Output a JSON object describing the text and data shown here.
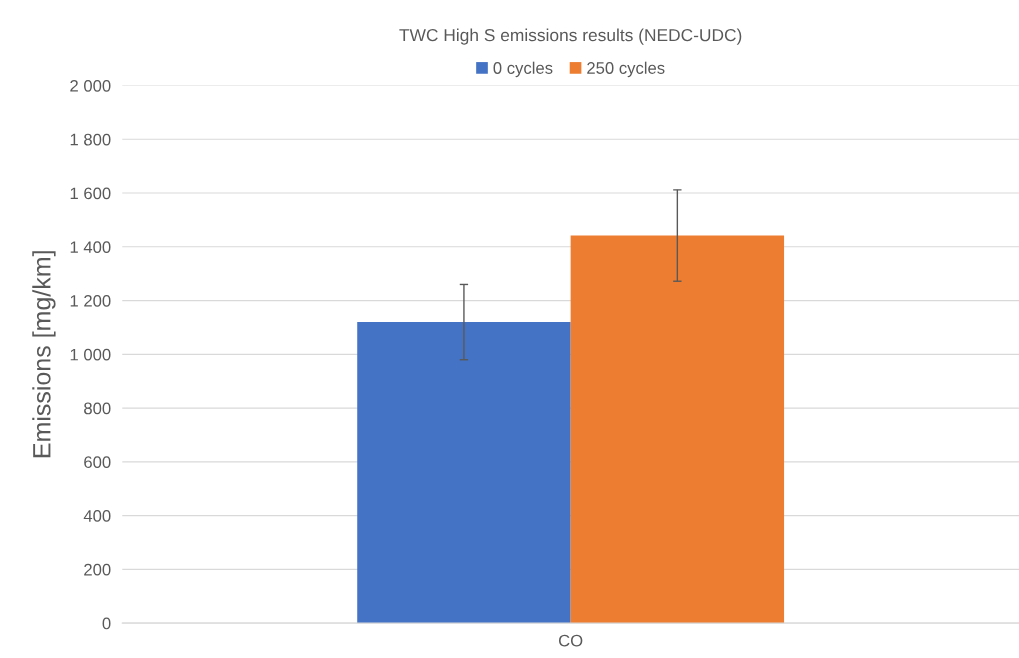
{
  "chart_data": {
    "type": "bar",
    "title": "TWC High S emissions results (NEDC-UDC)",
    "ylabel": "Emissions [mg/km]",
    "categories": [
      "CO"
    ],
    "series": [
      {
        "name": "0 cycles",
        "color": "#4472c4",
        "values": [
          1120
        ],
        "errors": [
          140
        ]
      },
      {
        "name": "250 cycles",
        "color": "#ed7d31",
        "values": [
          1442
        ],
        "errors": [
          170
        ]
      }
    ],
    "ylim": [
      0,
      2000
    ],
    "yticks": [
      0,
      200,
      400,
      600,
      800,
      {
        "value": 1000,
        "label": "1 000"
      },
      {
        "value": 1200,
        "label": "1 200"
      },
      {
        "value": 1400,
        "label": "1 400"
      },
      {
        "value": 1600,
        "label": "1 600"
      },
      {
        "value": 1800,
        "label": "1 800"
      },
      {
        "value": 2000,
        "label": "2 000"
      }
    ],
    "grid": "y",
    "legend": "top"
  }
}
